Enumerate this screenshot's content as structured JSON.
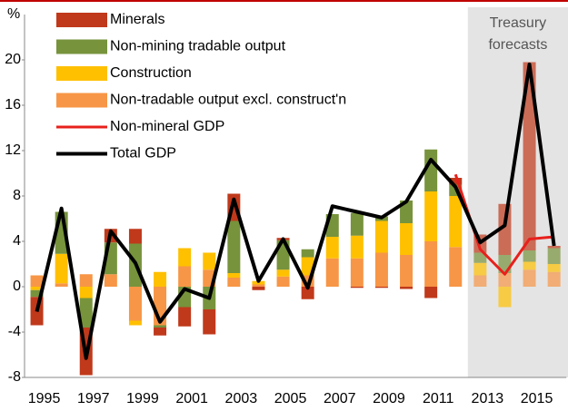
{
  "chart_data": {
    "type": "stacked_bar_line",
    "y_axis_label": "%",
    "categories": [
      "1995",
      null,
      "1997",
      null,
      "1999",
      null,
      "2001",
      null,
      "2003",
      null,
      "2005",
      null,
      "2007",
      null,
      "2009",
      null,
      "2011",
      null,
      "2013",
      null,
      "2015",
      null
    ],
    "series": [
      {
        "name": "Minerals",
        "kind": "bar",
        "color": "#c0391b",
        "values": [
          -2.5,
          0,
          -4.2,
          1.2,
          1.3,
          -0.7,
          -1.7,
          -2.2,
          2.4,
          -0.3,
          0.2,
          -1.1,
          0,
          -0.1,
          -0.1,
          -0.2,
          -1.0,
          0.6,
          1.6,
          4.5,
          16.6,
          0.2
        ]
      },
      {
        "name": "Non-mining tradable output",
        "kind": "bar",
        "color": "#77933c",
        "values": [
          -0.6,
          3.7,
          -2.6,
          2.8,
          3.8,
          -0.2,
          -1.8,
          -2.0,
          4.6,
          0,
          2.6,
          0.7,
          2.0,
          2.0,
          0.4,
          2.0,
          3.7,
          1.0,
          0.9,
          1.6,
          1.0,
          1.4
        ]
      },
      {
        "name": "Construction",
        "kind": "bar",
        "color": "#ffc000",
        "values": [
          -0.3,
          2.6,
          -1.0,
          0,
          -0.4,
          1.3,
          1.6,
          1.5,
          0.4,
          0.3,
          0.6,
          1.6,
          1.9,
          2.0,
          2.8,
          2.8,
          4.4,
          4.5,
          1.1,
          -1.8,
          0.7,
          0.7
        ]
      },
      {
        "name": "Non-tradable output excl. construct'n",
        "kind": "bar",
        "color": "#f79646",
        "values": [
          1.0,
          0.3,
          1.1,
          1.1,
          -3.0,
          -3.4,
          1.8,
          1.5,
          0.8,
          0.2,
          0.9,
          1.0,
          2.5,
          2.5,
          3.0,
          2.8,
          4.0,
          3.5,
          1.0,
          1.2,
          1.5,
          1.3
        ]
      },
      {
        "name": "Non-mineral GDP",
        "kind": "line",
        "color": "#e8201c",
        "values": [
          null,
          null,
          null,
          null,
          null,
          null,
          null,
          null,
          null,
          null,
          null,
          null,
          null,
          null,
          null,
          null,
          null,
          9.9,
          3.3,
          1.1,
          4.2,
          4.4
        ]
      },
      {
        "name": "Total GDP",
        "kind": "line",
        "color": "#000000",
        "values": [
          -2.2,
          6.9,
          -6.3,
          4.9,
          2.1,
          -3.1,
          -0.2,
          -1.0,
          7.7,
          0.5,
          4.2,
          -0.1,
          7.1,
          6.6,
          6.1,
          7.5,
          11.2,
          8.8,
          3.9,
          5.4,
          19.6,
          3.6
        ]
      }
    ],
    "shaded_region": {
      "label": "Treasury forecasts",
      "from": "2013",
      "color": "#e4e4e4"
    },
    "ylim": [
      -8,
      24
    ],
    "yticks": [
      -8,
      -4,
      0,
      4,
      8,
      12,
      16,
      20
    ]
  }
}
